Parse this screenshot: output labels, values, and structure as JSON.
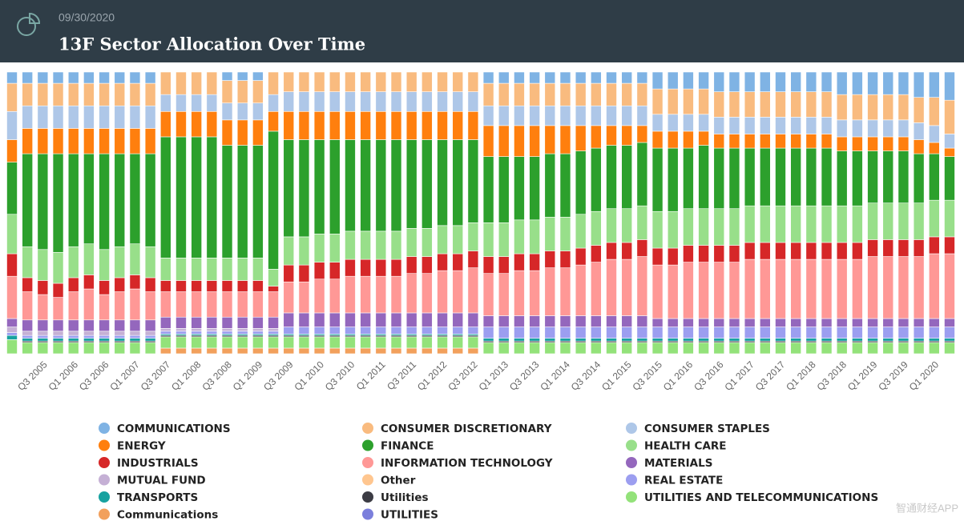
{
  "chart_data": {
    "type": "stacked_bar",
    "title": "13F Sector Allocation Over Time",
    "subtitle": "09/30/2020",
    "ylim": [
      0,
      100
    ],
    "categories": [
      null,
      null,
      "Q3 2005",
      null,
      "Q1 2006",
      null,
      "Q3 2006",
      null,
      "Q1 2007",
      null,
      "Q3 2007",
      null,
      "Q1 2008",
      null,
      "Q3 2008",
      null,
      "Q1 2009",
      null,
      "Q3 2009",
      null,
      "Q1 2010",
      null,
      "Q3 2010",
      null,
      "Q1 2011",
      null,
      "Q3 2011",
      null,
      "Q1 2012",
      null,
      "Q3 2012",
      null,
      "Q1 2013",
      null,
      "Q3 2013",
      null,
      "Q1 2014",
      null,
      "Q3 2014",
      null,
      "Q1 2015",
      null,
      "Q3 2015",
      null,
      "Q1 2016",
      null,
      "Q3 2016",
      null,
      "Q1 2017",
      null,
      "Q3 2017",
      null,
      "Q1 2018",
      null,
      "Q3 2018",
      null,
      "Q1 2019",
      null,
      "Q3 2019",
      null,
      "Q1 2020",
      null
    ],
    "series": [
      {
        "name": "COMMUNICATIONS",
        "color": "#7fb3e4",
        "values": [
          4,
          4,
          4,
          4,
          4,
          4,
          4,
          4,
          4,
          4,
          0,
          0,
          0,
          0,
          3,
          3,
          3,
          0,
          0,
          0,
          0,
          0,
          0,
          0,
          0,
          0,
          0,
          0,
          0,
          0,
          0,
          4,
          4,
          4,
          4,
          4,
          4,
          4,
          4,
          4,
          4,
          4,
          6,
          6,
          6,
          6,
          7,
          7,
          7,
          7,
          7,
          7,
          7,
          7,
          8,
          8,
          8,
          8,
          8,
          9,
          9,
          10
        ]
      },
      {
        "name": "CONSUMER DISCRETIONARY",
        "color": "#f9bb7f",
        "values": [
          10,
          8,
          8,
          8,
          8,
          8,
          8,
          8,
          8,
          8,
          8,
          8,
          8,
          8,
          8,
          8,
          8,
          8,
          7,
          7,
          7,
          7,
          7,
          7,
          7,
          7,
          7,
          7,
          7,
          7,
          7,
          8,
          8,
          8,
          8,
          8,
          8,
          8,
          8,
          8,
          8,
          8,
          9,
          9,
          9,
          9,
          9,
          9,
          9,
          9,
          9,
          9,
          9,
          9,
          9,
          9,
          9,
          9,
          9,
          9,
          10,
          12
        ]
      },
      {
        "name": "CONSUMER STAPLES",
        "color": "#aec7e8",
        "values": [
          10,
          8,
          8,
          8,
          8,
          8,
          8,
          8,
          8,
          8,
          6,
          6,
          6,
          6,
          6,
          6,
          6,
          6,
          7,
          7,
          7,
          7,
          7,
          7,
          7,
          7,
          7,
          7,
          7,
          7,
          7,
          7,
          7,
          7,
          7,
          7,
          7,
          7,
          7,
          7,
          7,
          7,
          6,
          6,
          6,
          6,
          6,
          6,
          6,
          6,
          6,
          6,
          6,
          6,
          6,
          6,
          6,
          6,
          6,
          6,
          6,
          5
        ]
      },
      {
        "name": "ENERGY",
        "color": "#ff7f0e",
        "values": [
          8,
          9,
          9,
          9,
          9,
          9,
          9,
          9,
          9,
          9,
          9,
          9,
          9,
          9,
          9,
          9,
          9,
          7,
          10,
          10,
          10,
          10,
          10,
          10,
          10,
          10,
          10,
          10,
          10,
          10,
          10,
          11,
          11,
          11,
          11,
          10,
          10,
          9,
          8,
          7,
          7,
          6,
          6,
          6,
          6,
          5,
          5,
          5,
          5,
          5,
          5,
          5,
          5,
          5,
          5,
          5,
          5,
          5,
          5,
          5,
          4,
          3
        ]
      },
      {
        "name": "FINANCE",
        "color": "#2ca02c",
        "values": [
          18.5,
          33,
          34,
          35,
          33,
          32,
          34,
          33,
          32,
          33,
          43,
          43,
          43,
          43,
          40,
          40,
          40,
          49,
          34.5,
          34.5,
          33.5,
          33.5,
          32.5,
          32.5,
          32.5,
          32.5,
          31.5,
          31.5,
          30.5,
          30.5,
          29.5,
          23.5,
          23.5,
          22.5,
          22.5,
          22.5,
          22.5,
          22.5,
          22.5,
          22.5,
          22.5,
          22.5,
          22.5,
          22.5,
          21.5,
          22.5,
          21.5,
          21.5,
          20.5,
          20.5,
          20.5,
          20.5,
          20.5,
          20.5,
          19.5,
          19.5,
          18.5,
          18.5,
          18.5,
          17.5,
          16.5,
          15.5
        ]
      },
      {
        "name": "HEALTH CARE",
        "color": "#98df8a",
        "values": [
          14,
          11,
          11,
          11,
          11,
          11,
          11,
          11,
          11,
          11,
          8,
          8,
          8,
          8,
          8,
          8,
          8,
          6,
          10,
          10,
          10,
          10,
          10,
          10,
          10,
          10,
          10,
          10,
          10,
          10,
          10,
          12,
          12,
          12,
          12,
          12,
          12,
          12,
          12,
          12,
          12,
          12,
          13,
          13,
          13,
          13,
          13,
          13,
          13,
          13,
          13,
          13,
          13,
          13,
          13,
          13,
          13,
          13,
          13,
          13,
          13,
          13
        ]
      },
      {
        "name": "INDUSTRIALS",
        "color": "#d62728",
        "values": [
          8,
          5,
          5,
          5,
          5,
          5,
          5,
          5,
          5,
          5,
          4,
          4,
          4,
          4,
          4,
          4,
          4,
          2,
          6,
          6,
          6,
          6,
          6,
          6,
          6,
          6,
          6,
          6,
          6,
          6,
          6,
          6,
          6,
          6,
          6,
          6,
          6,
          6,
          6,
          6,
          6,
          6,
          6,
          6,
          6,
          6,
          6,
          6,
          6,
          6,
          6,
          6,
          6,
          6,
          6,
          6,
          6,
          6,
          6,
          6,
          6,
          6
        ]
      },
      {
        "name": "INFORMATION TECHNOLOGY",
        "color": "#ff9896",
        "values": [
          15,
          10,
          9,
          8,
          10,
          11,
          9,
          10,
          11,
          10,
          9,
          9,
          9,
          9,
          9,
          9,
          9,
          9,
          11,
          11,
          12,
          12,
          13,
          13,
          13,
          13,
          14,
          14,
          15,
          15,
          16,
          15,
          15,
          16,
          16,
          17,
          17,
          18,
          19,
          20,
          20,
          21,
          19,
          19,
          20,
          20,
          20,
          20,
          21,
          21,
          21,
          21,
          21,
          21,
          21,
          21,
          22,
          22,
          22,
          22,
          23,
          23
        ]
      },
      {
        "name": "MATERIALS",
        "color": "#9467bd",
        "values": [
          3,
          4,
          4,
          4,
          4,
          4,
          4,
          4,
          4,
          4,
          4,
          4,
          4,
          4,
          4,
          4,
          4,
          4,
          5,
          5,
          5,
          5,
          5,
          5,
          5,
          5,
          5,
          5,
          5,
          5,
          5,
          4,
          4,
          4,
          4,
          4,
          4,
          4,
          4,
          4,
          4,
          4,
          3,
          3,
          3,
          3,
          3,
          3,
          3,
          3,
          3,
          3,
          3,
          3,
          3,
          3,
          3,
          3,
          3,
          3,
          3,
          3
        ]
      },
      {
        "name": "MUTUAL FUND",
        "color": "#c5b0d5",
        "values": [
          2,
          1.5,
          1.5,
          1.5,
          1.5,
          1.5,
          1.5,
          1.5,
          1.5,
          1.5,
          1,
          1,
          1,
          1,
          1,
          1,
          1,
          1,
          0,
          0,
          0,
          0,
          0,
          0,
          0,
          0,
          0,
          0,
          0,
          0,
          0,
          0,
          0,
          0,
          0,
          0,
          0,
          0,
          0,
          0,
          0,
          0,
          0,
          0,
          0,
          0,
          0,
          0,
          0,
          0,
          0,
          0,
          0,
          0,
          0,
          0,
          0,
          0,
          0,
          0,
          0,
          0
        ]
      },
      {
        "name": "Other",
        "color": "#ffc68f",
        "values": [
          0,
          0,
          0,
          0,
          0,
          0,
          0,
          0,
          0,
          0,
          0,
          0,
          0,
          0,
          0,
          0,
          0,
          0,
          0,
          0,
          0,
          0,
          0,
          0,
          0,
          0,
          0,
          0,
          0,
          0,
          0,
          0,
          0,
          0,
          0,
          0,
          0,
          0,
          0,
          0,
          0,
          0,
          0,
          0,
          0,
          0,
          0,
          0,
          0,
          0,
          0,
          0,
          0,
          0,
          0,
          0,
          0,
          0,
          0,
          0,
          0,
          0
        ]
      },
      {
        "name": "REAL ESTATE",
        "color": "#9c9ef0",
        "values": [
          1,
          1,
          1,
          1,
          1,
          1,
          1,
          1,
          1,
          1,
          1,
          1,
          1,
          1,
          1,
          1,
          1,
          1,
          2.5,
          2.5,
          2.5,
          2.5,
          2.5,
          2.5,
          2.5,
          2.5,
          2.5,
          2.5,
          2.5,
          2.5,
          2.5,
          4,
          4,
          4,
          4,
          4,
          4,
          4,
          4,
          4,
          4,
          4,
          4,
          4,
          4,
          4,
          4,
          4,
          4,
          4,
          4,
          4,
          4,
          4,
          4,
          4,
          4,
          4,
          4,
          4,
          4,
          4
        ]
      },
      {
        "name": "TRANSPORTS",
        "color": "#17a2a0",
        "values": [
          1.5,
          1,
          1,
          1,
          1,
          1,
          1,
          1,
          1,
          1,
          0.5,
          0.5,
          0.5,
          0.5,
          0.5,
          0.5,
          0.5,
          0.5,
          0.5,
          0.5,
          0.5,
          0.5,
          0.5,
          0.5,
          0.5,
          0.5,
          0.5,
          0.5,
          0.5,
          0.5,
          0.5,
          1,
          1,
          1,
          1,
          1,
          1,
          1,
          1,
          1,
          1,
          1,
          1,
          1,
          1,
          1,
          1,
          1,
          1,
          1,
          1,
          1,
          1,
          1,
          1,
          1,
          1,
          1,
          1,
          1,
          1,
          1
        ]
      },
      {
        "name": "Utilities",
        "color": "#3c3c44",
        "values": [
          0,
          0.5,
          0.5,
          0.5,
          0.5,
          0.5,
          0.5,
          0.5,
          0.5,
          0.5,
          0.5,
          0.5,
          0.5,
          0.5,
          0.5,
          0.5,
          0.5,
          0.5,
          0.5,
          0.5,
          0.5,
          0.5,
          0.5,
          0.5,
          0.5,
          0.5,
          0.5,
          0.5,
          0.5,
          0.5,
          0.5,
          0.5,
          0.5,
          0.5,
          0.5,
          0.5,
          0.5,
          0.5,
          0.5,
          0.5,
          0.5,
          0.5,
          0.5,
          0.5,
          0.5,
          0.5,
          0.5,
          0.5,
          0.5,
          0.5,
          0.5,
          0.5,
          0.5,
          0.5,
          0.5,
          0.5,
          0.5,
          0.5,
          0.5,
          0.5,
          0.5,
          0.5
        ]
      },
      {
        "name": "UTILITIES AND TELECOMMUNICATIONS",
        "color": "#93e27a",
        "values": [
          5,
          4,
          4,
          4,
          4,
          4,
          4,
          4,
          4,
          4,
          4,
          4,
          4,
          4,
          4,
          4,
          4,
          4,
          4,
          4,
          4,
          4,
          4,
          4,
          4,
          4,
          4,
          4,
          4,
          4,
          4,
          4,
          4,
          4,
          4,
          4,
          4,
          4,
          4,
          4,
          4,
          4,
          4,
          4,
          4,
          4,
          4,
          4,
          4,
          4,
          4,
          4,
          4,
          4,
          4,
          4,
          4,
          4,
          4,
          4,
          4,
          4
        ]
      },
      {
        "name": "Communications",
        "color": "#f2a05c",
        "values": [
          0,
          0,
          0,
          0,
          0,
          0,
          0,
          0,
          0,
          0,
          2,
          2,
          2,
          2,
          2,
          2,
          2,
          2,
          2,
          2,
          2,
          2,
          2,
          2,
          2,
          2,
          2,
          2,
          2,
          2,
          2,
          0,
          0,
          0,
          0,
          0,
          0,
          0,
          0,
          0,
          0,
          0,
          0,
          0,
          0,
          0,
          0,
          0,
          0,
          0,
          0,
          0,
          0,
          0,
          0,
          0,
          0,
          0,
          0,
          0,
          0,
          0
        ]
      },
      {
        "name": "UTILITIES",
        "color": "#7b7fdc",
        "values": [
          0,
          0,
          0,
          0,
          0,
          0,
          0,
          0,
          0,
          0,
          0,
          0,
          0,
          0,
          0,
          0,
          0,
          0,
          0,
          0,
          0,
          0,
          0,
          0,
          0,
          0,
          0,
          0,
          0,
          0,
          0,
          0,
          0,
          0,
          0,
          0,
          0,
          0,
          0,
          0,
          0,
          0,
          0,
          0,
          0,
          0,
          0,
          0,
          0,
          0,
          0,
          0,
          0,
          0,
          0,
          0,
          0,
          0,
          0,
          0,
          0,
          0
        ]
      }
    ]
  },
  "watermark": "智通财经APP"
}
